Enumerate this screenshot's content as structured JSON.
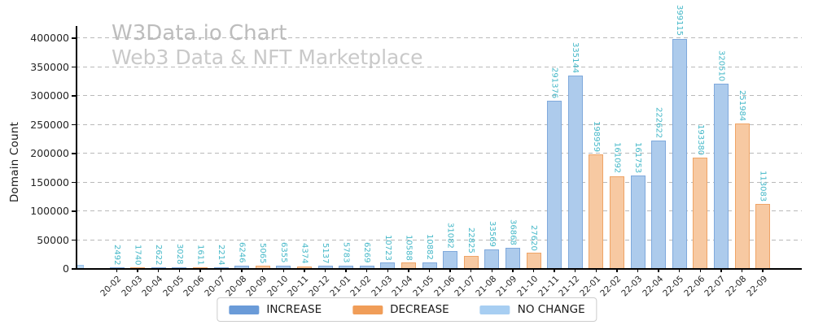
{
  "chart_data": {
    "type": "bar",
    "title": "W3Data.io Chart",
    "subtitle": "Web3 Data & NFT Marketplace",
    "xlabel": "",
    "ylabel": "Domain Count",
    "ylim": [
      0,
      421000
    ],
    "yticks": [
      0,
      50000,
      100000,
      150000,
      200000,
      250000,
      300000,
      350000,
      400000
    ],
    "grid": "horizontal dashed gray lines",
    "x_tick_rotation_deg": 45,
    "bar_value_labels": {
      "orientation": "vertical",
      "color": "#45b8c8"
    },
    "bars": [
      {
        "month": "20-02",
        "value": 2492,
        "category": "increase"
      },
      {
        "month": "20-03",
        "value": 1740,
        "category": "decrease"
      },
      {
        "month": "20-04",
        "value": 2622,
        "category": "increase"
      },
      {
        "month": "20-05",
        "value": 3028,
        "category": "increase"
      },
      {
        "month": "20-06",
        "value": 1611,
        "category": "decrease"
      },
      {
        "month": "20-07",
        "value": 2214,
        "category": "increase"
      },
      {
        "month": "20-08",
        "value": 6246,
        "category": "increase"
      },
      {
        "month": "20-09",
        "value": 5065,
        "category": "decrease"
      },
      {
        "month": "20-10",
        "value": 6355,
        "category": "increase"
      },
      {
        "month": "20-11",
        "value": 4374,
        "category": "decrease"
      },
      {
        "month": "20-12",
        "value": 5137,
        "category": "increase"
      },
      {
        "month": "21-01",
        "value": 5783,
        "category": "increase"
      },
      {
        "month": "21-02",
        "value": 6269,
        "category": "increase"
      },
      {
        "month": "21-03",
        "value": 10723,
        "category": "increase"
      },
      {
        "month": "21-04",
        "value": 10588,
        "category": "decrease"
      },
      {
        "month": "21-05",
        "value": 10882,
        "category": "increase"
      },
      {
        "month": "21-06",
        "value": 31082,
        "category": "increase"
      },
      {
        "month": "21-07",
        "value": 22825,
        "category": "decrease"
      },
      {
        "month": "21-08",
        "value": 33569,
        "category": "increase"
      },
      {
        "month": "21-09",
        "value": 36868,
        "category": "increase"
      },
      {
        "month": "21-10",
        "value": 27620,
        "category": "decrease"
      },
      {
        "month": "21-11",
        "value": 291376,
        "category": "increase"
      },
      {
        "month": "21-12",
        "value": 335144,
        "category": "increase"
      },
      {
        "month": "22-01",
        "value": 198959,
        "category": "decrease"
      },
      {
        "month": "22-02",
        "value": 161092,
        "category": "decrease"
      },
      {
        "month": "22-03",
        "value": 161753,
        "category": "increase"
      },
      {
        "month": "22-04",
        "value": 222622,
        "category": "increase"
      },
      {
        "month": "22-05",
        "value": 399115,
        "category": "increase"
      },
      {
        "month": "22-06",
        "value": 193380,
        "category": "decrease"
      },
      {
        "month": "22-07",
        "value": 320510,
        "category": "increase"
      },
      {
        "month": "22-08",
        "value": 251984,
        "category": "decrease"
      },
      {
        "month": "22-09",
        "value": 113083,
        "category": "decrease"
      }
    ],
    "clipped_partial_bar": {
      "category": "no_change",
      "approx_value": 7000,
      "position": "left edge of plot, partially cut by y-axis, no tick label"
    },
    "colors": {
      "increase_fill": "#adcbec",
      "increase_edge": "#7fa9dc",
      "decrease_fill": "#f7c9a2",
      "decrease_edge": "#efa466",
      "no_change_fill": "#b9d7f3",
      "no_change_edge": "#9cc5ee",
      "axis": "#000000",
      "grid": "#b9b9b9",
      "tick_label": "#262626"
    },
    "legend": {
      "position": "bottom center, below x axis, boxed",
      "items": [
        {
          "label": "INCREASE",
          "category": "increase",
          "color": "#6a9bd8"
        },
        {
          "label": "DECREASE",
          "category": "decrease",
          "color": "#f09d58"
        },
        {
          "label": "NO CHANGE",
          "category": "no_change",
          "color": "#a7cef2"
        }
      ]
    }
  }
}
